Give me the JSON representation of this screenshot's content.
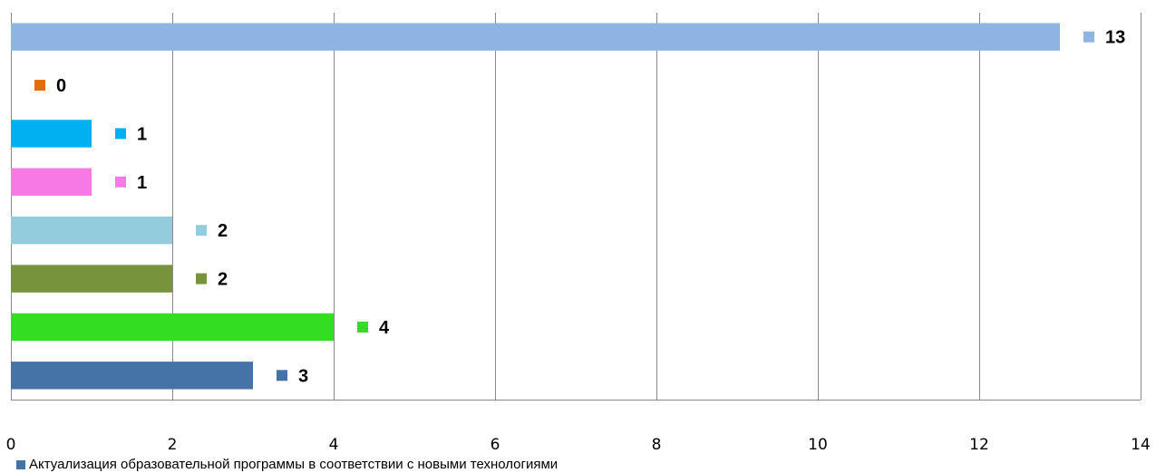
{
  "chart_data": {
    "type": "bar",
    "orientation": "horizontal",
    "xlim": [
      0,
      14
    ],
    "x_ticks": [
      0,
      2,
      4,
      6,
      8,
      10,
      12,
      14
    ],
    "grid": "vertical",
    "bars": [
      {
        "value": 3,
        "color": "#4572a7"
      },
      {
        "value": 4,
        "color": "#33dd22"
      },
      {
        "value": 2,
        "color": "#77933c"
      },
      {
        "value": 2,
        "color": "#93cddd"
      },
      {
        "value": 1,
        "color": "#f679e6"
      },
      {
        "value": 1,
        "color": "#00b0f0"
      },
      {
        "value": 0,
        "color": "#e46c0a"
      },
      {
        "value": 13,
        "color": "#8eb4e3"
      }
    ],
    "legend": {
      "placement": "bottom-left",
      "entries": [
        {
          "label": "Актуализация образовательной программы в соответствии с новыми технологиями",
          "color": "#4572a7"
        }
      ]
    }
  }
}
